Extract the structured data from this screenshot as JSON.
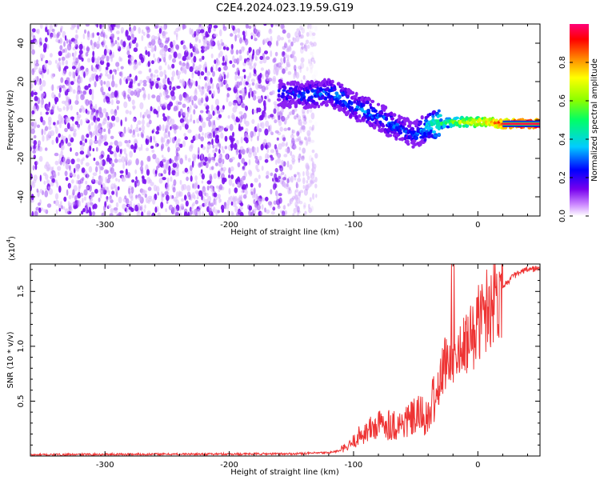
{
  "title": "C2E4.2024.023.19.59.G19",
  "chart_data": [
    {
      "type": "heatmap",
      "xlabel": "Height of straight line (km)",
      "ylabel": "Frequency (Hz)",
      "xlim": [
        -360,
        50
      ],
      "ylim": [
        -50,
        50
      ],
      "xticks": [
        -300,
        -200,
        -100,
        0
      ],
      "yticks": [
        -40,
        -20,
        0,
        20,
        40
      ],
      "xtick_labels": [
        "-300",
        "-200",
        "-100",
        "0"
      ],
      "ytick_labels": [
        "-40",
        "-20",
        "0",
        "20",
        "40"
      ],
      "colorbar": {
        "label": "Normalized spectral amplitude",
        "range": [
          0,
          1
        ],
        "ticks": [
          0.0,
          0.2,
          0.4,
          0.6,
          0.8
        ],
        "tick_labels": [
          "0.0",
          "0.2",
          "0.4",
          "0.6",
          "0.8"
        ],
        "colors": [
          "#ffffff",
          "#cc88ff",
          "#7700ee",
          "#0000ff",
          "#00ccff",
          "#00ff66",
          "#88ff00",
          "#ffff00",
          "#ff8800",
          "#ff0000",
          "#ff0077"
        ]
      },
      "noise_region": {
        "x_range": [
          -360,
          -130
        ],
        "freq_range": [
          -50,
          50
        ],
        "amplitude": "low"
      },
      "signal_track": [
        {
          "x": -160,
          "freq": 14,
          "amp": 0.25
        },
        {
          "x": -140,
          "freq": 13,
          "amp": 0.28
        },
        {
          "x": -120,
          "freq": 14,
          "amp": 0.3
        },
        {
          "x": -110,
          "freq": 12,
          "amp": 0.32
        },
        {
          "x": -100,
          "freq": 7,
          "amp": 0.3
        },
        {
          "x": -90,
          "freq": 5,
          "amp": 0.33
        },
        {
          "x": -80,
          "freq": 2,
          "amp": 0.3
        },
        {
          "x": -70,
          "freq": -2,
          "amp": 0.3
        },
        {
          "x": -60,
          "freq": -5,
          "amp": 0.28
        },
        {
          "x": -50,
          "freq": -8,
          "amp": 0.28
        },
        {
          "x": -40,
          "freq": -3,
          "amp": 0.4
        },
        {
          "x": -30,
          "freq": -2,
          "amp": 0.5
        },
        {
          "x": -20,
          "freq": -1,
          "amp": 0.6
        },
        {
          "x": -10,
          "freq": -1,
          "amp": 0.7
        },
        {
          "x": 0,
          "freq": -1,
          "amp": 0.75
        },
        {
          "x": 10,
          "freq": -1,
          "amp": 0.8
        },
        {
          "x": 20,
          "freq": -2,
          "amp": 0.95
        },
        {
          "x": 30,
          "freq": -2,
          "amp": 1.0
        },
        {
          "x": 50,
          "freq": -2,
          "amp": 1.0
        }
      ]
    },
    {
      "type": "line",
      "xlabel": "Height of straight line (km)",
      "ylabel": "SNR (10 * v/v)",
      "y_multiplier_label": "(x10",
      "y_multiplier_exp": "4",
      "xlim": [
        -360,
        50
      ],
      "ylim": [
        0,
        17500
      ],
      "xticks": [
        -300,
        -200,
        -100,
        0
      ],
      "yticks": [
        5000,
        10000,
        15000
      ],
      "xtick_labels": [
        "-300",
        "-200",
        "-100",
        "0"
      ],
      "ytick_labels": [
        "0.5",
        "1.0",
        "1.5"
      ],
      "color": "#ee3333",
      "series": [
        {
          "x": [
            -360,
            -300,
            -200,
            -150,
            -120,
            -105,
            -95,
            -85,
            -75,
            -65,
            -55,
            -45,
            -40,
            -35,
            -30,
            -25,
            -20,
            -15,
            -10,
            -5,
            0,
            10,
            20,
            30,
            40,
            50
          ],
          "y": [
            100,
            150,
            180,
            200,
            300,
            600,
            1500,
            2000,
            2400,
            2200,
            2600,
            3000,
            2500,
            4500,
            7000,
            9000,
            9500,
            9000,
            10000,
            10800,
            12000,
            14000,
            15500,
            16500,
            17000,
            17100
          ]
        }
      ]
    }
  ]
}
